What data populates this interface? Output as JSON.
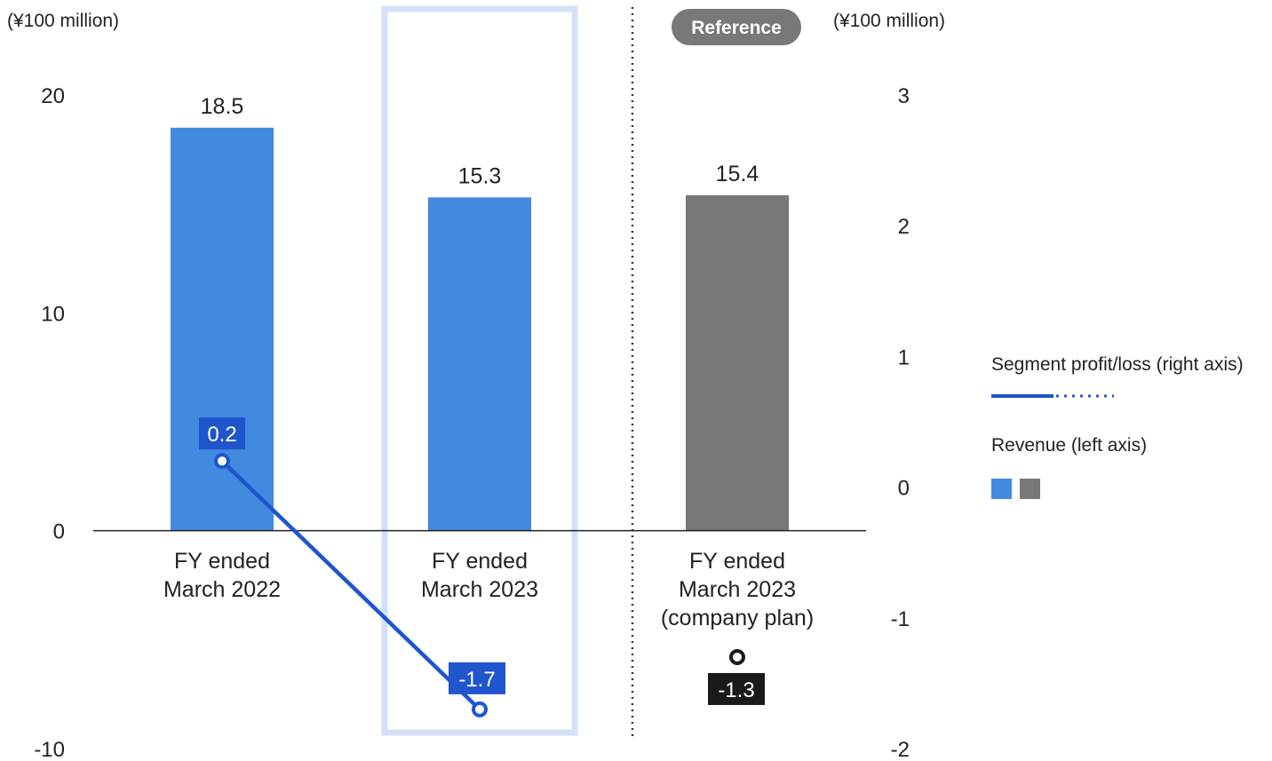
{
  "chart_data": {
    "type": "bar",
    "left_axis_unit": "(¥100 million)",
    "right_axis_unit": "(¥100 million)",
    "reference_badge": "Reference",
    "left_axis": {
      "min": -10,
      "max": 20,
      "ticks": [
        20,
        10,
        0,
        -10
      ]
    },
    "right_axis": {
      "min": -2,
      "max": 3,
      "ticks": [
        3,
        2,
        1,
        0,
        -1,
        -2
      ]
    },
    "categories": [
      [
        "FY ended",
        "March 2022"
      ],
      [
        "FY ended",
        "March 2023"
      ],
      [
        "FY ended",
        "March 2023",
        "(company plan)"
      ]
    ],
    "series": [
      {
        "name": "Revenue (left axis)",
        "axis": "left",
        "values": [
          18.5,
          15.3,
          15.4
        ],
        "labels": [
          "18.5",
          "15.3",
          "15.4"
        ],
        "colors": [
          "#4289E0",
          "#4289E0",
          "#787878"
        ]
      },
      {
        "name": "Segment profit/loss (right axis)",
        "axis": "right",
        "values": [
          0.2,
          -1.7,
          -1.3
        ],
        "labels": [
          "0.2",
          "-1.7",
          "-1.3"
        ],
        "colors": [
          "#1F55CD",
          "#1F55CD",
          "#1A1A1A"
        ]
      }
    ],
    "highlighted_category": 1,
    "reference_category": 2,
    "colors": {
      "revenue": "#4289E0",
      "revenue_reference": "#787878",
      "profit_line": "#1F55CD",
      "profit_reference": "#1A1A1A",
      "highlight_frame": "#D3E1F8"
    },
    "legend": {
      "position": "right",
      "profit_title": "Segment profit/loss (right axis)",
      "revenue_title": "Revenue (left axis)"
    }
  }
}
